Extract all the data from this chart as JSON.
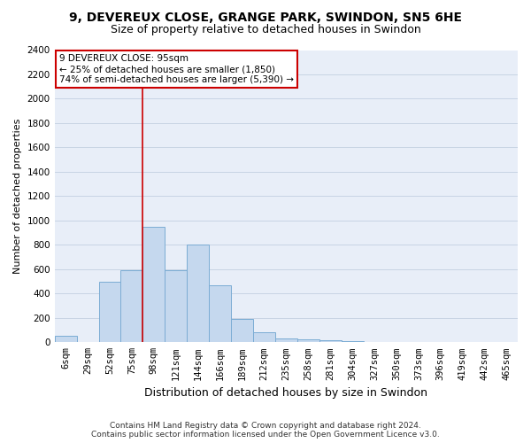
{
  "title_line1": "9, DEVEREUX CLOSE, GRANGE PARK, SWINDON, SN5 6HE",
  "title_line2": "Size of property relative to detached houses in Swindon",
  "xlabel": "Distribution of detached houses by size in Swindon",
  "ylabel": "Number of detached properties",
  "categories": [
    "6sqm",
    "29sqm",
    "52sqm",
    "75sqm",
    "98sqm",
    "121sqm",
    "144sqm",
    "166sqm",
    "189sqm",
    "212sqm",
    "235sqm",
    "258sqm",
    "281sqm",
    "304sqm",
    "327sqm",
    "350sqm",
    "373sqm",
    "396sqm",
    "419sqm",
    "442sqm",
    "465sqm"
  ],
  "values": [
    50,
    0,
    500,
    590,
    950,
    590,
    800,
    470,
    195,
    85,
    30,
    25,
    20,
    10,
    0,
    0,
    0,
    0,
    0,
    0,
    0
  ],
  "bar_color": "#c5d8ee",
  "bar_edge_color": "#7bacd4",
  "red_line_bin_index": 4,
  "annotation_title": "9 DEVEREUX CLOSE: 95sqm",
  "annotation_line1": "← 25% of detached houses are smaller (1,850)",
  "annotation_line2": "74% of semi-detached houses are larger (5,390) →",
  "annotation_box_facecolor": "#ffffff",
  "annotation_box_edgecolor": "#cc0000",
  "footer_line1": "Contains HM Land Registry data © Crown copyright and database right 2024.",
  "footer_line2": "Contains public sector information licensed under the Open Government Licence v3.0.",
  "ylim": [
    0,
    2400
  ],
  "yticks": [
    0,
    200,
    400,
    600,
    800,
    1000,
    1200,
    1400,
    1600,
    1800,
    2000,
    2200,
    2400
  ],
  "grid_color": "#c8d4e4",
  "bg_color": "#e8eef8",
  "bar_width": 1.0,
  "title_fontsize": 10,
  "subtitle_fontsize": 9,
  "ylabel_fontsize": 8,
  "xlabel_fontsize": 9,
  "annotation_fontsize": 7.5,
  "footer_fontsize": 6.5,
  "tick_fontsize": 7.5
}
